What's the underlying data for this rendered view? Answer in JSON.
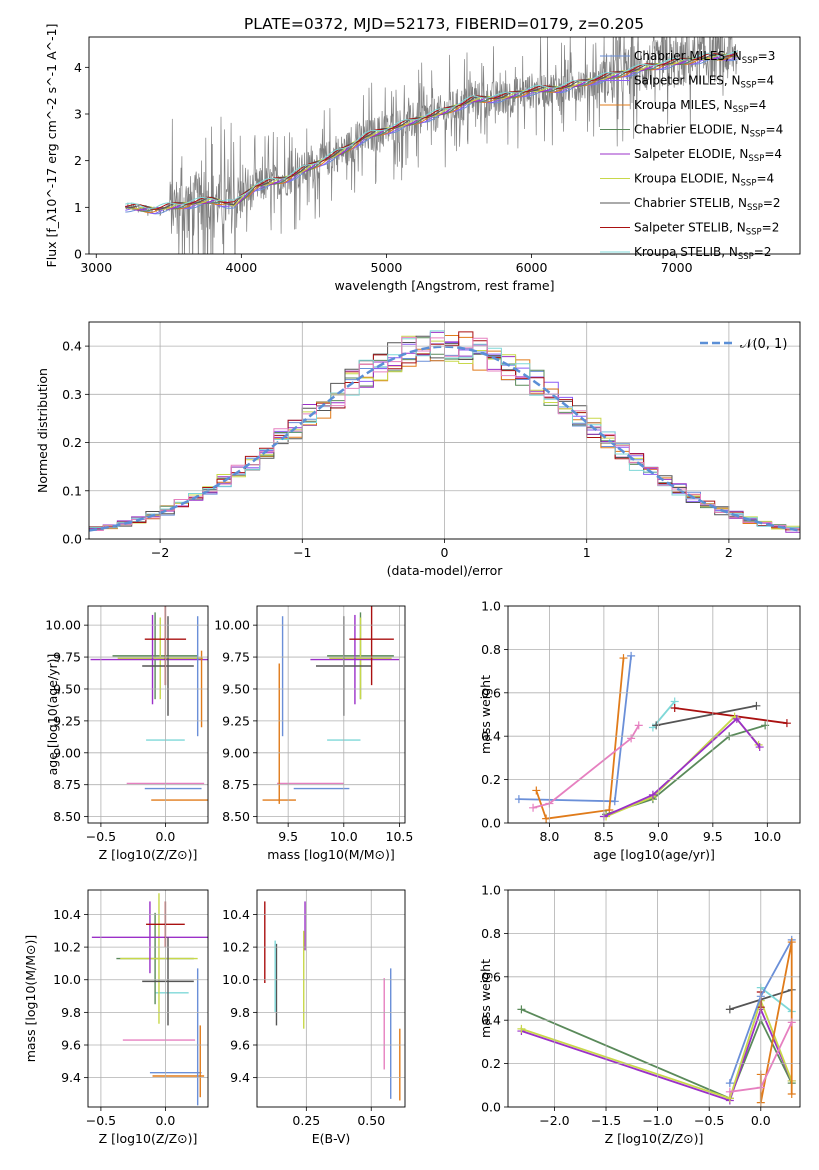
{
  "figure_title": "PLATE=0372, MJD=52173, FIBERID=0179, z=0.205",
  "colors": {
    "Chabrier MILES": "#6a8fd8",
    "Salpeter MILES": "#8b5cf6",
    "Kroupa MILES": "#e07b1a",
    "Chabrier ELODIE": "#5a8a5a",
    "Salpeter ELODIE": "#9b30c8",
    "Kroupa ELODIE": "#c8d84a",
    "Chabrier STELIB": "#555555",
    "Salpeter STELIB": "#aa1111",
    "Kroupa STELIB": "#7fd8d8",
    "extra_pink": "#e680c0",
    "observed": "#7f7f7f",
    "normal_curve": "#5b8fd6"
  },
  "chart_data": [
    {
      "id": "spectrum",
      "type": "line",
      "xlabel": "wavelength [Angstrom, rest frame]",
      "ylabel": "Flux [f_λ10^-17 erg cm^-2 s^-1 A^-1]",
      "xlim": [
        2950,
        7850
      ],
      "ylim": [
        0,
        4.65
      ],
      "xticks": [
        3000,
        4000,
        5000,
        6000,
        7000
      ],
      "yticks": [
        0,
        1,
        2,
        3,
        4
      ],
      "legend_position": "right",
      "legend": [
        {
          "model": "Chabrier MILES",
          "nssp": "3"
        },
        {
          "model": "Salpeter MILES",
          "nssp": "4"
        },
        {
          "model": "Kroupa MILES",
          "nssp": "4"
        },
        {
          "model": "Chabrier ELODIE",
          "nssp": "4"
        },
        {
          "model": "Salpeter ELODIE",
          "nssp": "4"
        },
        {
          "model": "Kroupa ELODIE",
          "nssp": "4"
        },
        {
          "model": "Chabrier STELIB",
          "nssp": "2"
        },
        {
          "model": "Salpeter STELIB",
          "nssp": "2"
        },
        {
          "model": "Kroupa STELIB",
          "nssp": "2"
        }
      ],
      "continuum": [
        [
          3200,
          1.0
        ],
        [
          3400,
          0.95
        ],
        [
          3600,
          1.05
        ],
        [
          3800,
          1.15
        ],
        [
          3950,
          1.05
        ],
        [
          4100,
          1.45
        ],
        [
          4300,
          1.6
        ],
        [
          4500,
          1.9
        ],
        [
          4700,
          2.2
        ],
        [
          4850,
          2.5
        ],
        [
          5000,
          2.65
        ],
        [
          5200,
          2.85
        ],
        [
          5400,
          3.05
        ],
        [
          5600,
          3.3
        ],
        [
          5800,
          3.35
        ],
        [
          6000,
          3.5
        ],
        [
          6200,
          3.55
        ],
        [
          6400,
          3.7
        ],
        [
          6600,
          3.85
        ],
        [
          6800,
          4.0
        ],
        [
          7000,
          4.1
        ],
        [
          7200,
          4.2
        ],
        [
          7400,
          4.25
        ]
      ]
    },
    {
      "id": "residuals",
      "type": "histogram",
      "xlabel": "(data-model)/error",
      "ylabel": "Normed distribution",
      "xlim": [
        -2.5,
        2.5
      ],
      "ylim": [
        0,
        0.45
      ],
      "xticks": [
        -2,
        -1,
        0,
        1,
        2
      ],
      "yticks": [
        0.0,
        0.1,
        0.2,
        0.3,
        0.4
      ],
      "legend_label": "𝒩(0, 1)",
      "normal": {
        "mu": 0,
        "sigma": 1
      }
    },
    {
      "id": "age_vs_Z",
      "type": "errorbar",
      "xlabel": "Z [log10(Z/Z⊙)]",
      "ylabel": "age  [log10(age/yr)]",
      "xlim": [
        -0.6,
        0.33
      ],
      "ylim": [
        8.45,
        10.15
      ],
      "xticks": [
        -0.5,
        0.0
      ],
      "yticks": [
        8.5,
        8.75,
        9.0,
        9.25,
        9.5,
        9.75,
        10.0
      ],
      "points": [
        {
          "c": "Chabrier MILES",
          "x": 0.06,
          "xerr": 0.22,
          "y": 8.72,
          "yerr": 0.0
        },
        {
          "c": "Kroupa MILES",
          "x": 0.14,
          "xerr": 0.25,
          "y": 8.63,
          "yerr": 0.0
        },
        {
          "c": "extra_pink",
          "x": 0.0,
          "xerr": 0.3,
          "y": 8.76,
          "yerr": 0.0
        },
        {
          "c": "Kroupa STELIB",
          "x": 0.0,
          "xerr": 0.15,
          "y": 9.1,
          "yerr": 0.0
        },
        {
          "c": "Chabrier ELODIE",
          "x": -0.08,
          "xerr": 0.33,
          "y": 9.76,
          "yerr": 0.34
        },
        {
          "c": "Kroupa ELODIE",
          "x": -0.04,
          "xerr": 0.33,
          "y": 9.74,
          "yerr": 0.32
        },
        {
          "c": "Salpeter ELODIE",
          "x": -0.1,
          "xerr": 0.48,
          "y": 9.73,
          "yerr": 0.35
        },
        {
          "c": "Chabrier STELIB",
          "x": 0.02,
          "xerr": 0.2,
          "y": 9.68,
          "yerr": 0.39
        },
        {
          "c": "Salpeter STELIB",
          "x": 0.0,
          "xerr": 0.16,
          "y": 9.89,
          "yerr": 0.36
        },
        {
          "c": "Chabrier MILES",
          "x": 0.25,
          "xerr": 0.0,
          "y": 9.6,
          "yerr": 0.47
        },
        {
          "c": "Kroupa MILES",
          "x": 0.28,
          "xerr": 0.0,
          "y": 9.5,
          "yerr": 0.3
        }
      ]
    },
    {
      "id": "age_vs_mass",
      "type": "errorbar",
      "xlabel": "mass [log10(M/M⊙)]",
      "xlim": [
        9.22,
        10.55
      ],
      "ylim": [
        8.45,
        10.15
      ],
      "xticks": [
        9.5,
        10.0,
        10.5
      ],
      "yticks": [
        8.5,
        8.75,
        9.0,
        9.25,
        9.5,
        9.75,
        10.0
      ],
      "points": [
        {
          "c": "Chabrier MILES",
          "x": 9.8,
          "xerr": 0.25,
          "y": 8.72,
          "yerr": 0.0
        },
        {
          "c": "Kroupa MILES",
          "x": 9.42,
          "xerr": 0.15,
          "y": 8.63,
          "yerr": 0.0
        },
        {
          "c": "extra_pink",
          "x": 9.7,
          "xerr": 0.3,
          "y": 8.76,
          "yerr": 0.0
        },
        {
          "c": "Kroupa STELIB",
          "x": 10.0,
          "xerr": 0.15,
          "y": 9.1,
          "yerr": 0.0
        },
        {
          "c": "Chabrier ELODIE",
          "x": 10.15,
          "xerr": 0.3,
          "y": 9.76,
          "yerr": 0.34
        },
        {
          "c": "Kroupa ELODIE",
          "x": 10.15,
          "xerr": 0.28,
          "y": 9.74,
          "yerr": 0.32
        },
        {
          "c": "Salpeter ELODIE",
          "x": 10.1,
          "xerr": 0.4,
          "y": 9.73,
          "yerr": 0.35
        },
        {
          "c": "Chabrier STELIB",
          "x": 10.0,
          "xerr": 0.25,
          "y": 9.68,
          "yerr": 0.39
        },
        {
          "c": "Salpeter STELIB",
          "x": 10.25,
          "xerr": 0.2,
          "y": 9.89,
          "yerr": 0.36
        },
        {
          "c": "Chabrier MILES",
          "x": 9.45,
          "xerr": 0.0,
          "y": 9.6,
          "yerr": 0.47
        },
        {
          "c": "Kroupa MILES",
          "x": 9.42,
          "xerr": 0.0,
          "y": 9.15,
          "yerr": 0.55
        }
      ]
    },
    {
      "id": "weight_vs_age",
      "type": "line",
      "xlabel": "age  [log10(age/yr)]",
      "ylabel": "mass weight",
      "xlim": [
        7.62,
        10.3
      ],
      "ylim": [
        0,
        1.0
      ],
      "xticks": [
        8.0,
        8.5,
        9.0,
        9.5,
        10.0
      ],
      "yticks": [
        0.0,
        0.2,
        0.4,
        0.6,
        0.8,
        1.0
      ],
      "series": [
        {
          "c": "Chabrier MILES",
          "pts": [
            [
              7.72,
              0.11
            ],
            [
              8.6,
              0.1
            ],
            [
              8.75,
              0.77
            ]
          ]
        },
        {
          "c": "Kroupa MILES",
          "pts": [
            [
              7.88,
              0.15
            ],
            [
              7.97,
              0.02
            ],
            [
              8.55,
              0.06
            ],
            [
              8.68,
              0.76
            ]
          ]
        },
        {
          "c": "extra_pink",
          "pts": [
            [
              7.85,
              0.07
            ],
            [
              8.0,
              0.09
            ],
            [
              8.75,
              0.39
            ],
            [
              8.82,
              0.45
            ]
          ]
        },
        {
          "c": "Kroupa STELIB",
          "pts": [
            [
              8.95,
              0.44
            ],
            [
              9.15,
              0.56
            ]
          ]
        },
        {
          "c": "Chabrier STELIB",
          "pts": [
            [
              8.98,
              0.45
            ],
            [
              9.9,
              0.54
            ]
          ]
        },
        {
          "c": "Salpeter STELIB",
          "pts": [
            [
              9.15,
              0.53
            ],
            [
              10.18,
              0.46
            ]
          ]
        },
        {
          "c": "Chabrier ELODIE",
          "pts": [
            [
              8.52,
              0.04
            ],
            [
              8.95,
              0.11
            ],
            [
              9.65,
              0.4
            ],
            [
              9.98,
              0.45
            ]
          ]
        },
        {
          "c": "Kroupa ELODIE",
          "pts": [
            [
              8.52,
              0.03
            ],
            [
              8.95,
              0.12
            ],
            [
              9.7,
              0.49
            ],
            [
              9.92,
              0.36
            ]
          ]
        },
        {
          "c": "Salpeter ELODIE",
          "pts": [
            [
              8.5,
              0.03
            ],
            [
              8.95,
              0.13
            ],
            [
              9.72,
              0.48
            ],
            [
              9.93,
              0.35
            ]
          ]
        }
      ]
    },
    {
      "id": "mass_vs_Z",
      "type": "errorbar",
      "xlabel": "Z [log10(Z/Z⊙)]",
      "ylabel": "mass [log10(M/M⊙)]",
      "xlim": [
        -0.6,
        0.33
      ],
      "ylim": [
        9.22,
        10.55
      ],
      "xticks": [
        -0.5,
        0.0
      ],
      "yticks": [
        9.4,
        9.6,
        9.8,
        10.0,
        10.2,
        10.4
      ],
      "points": [
        {
          "c": "Chabrier MILES",
          "x": 0.08,
          "xerr": 0.2,
          "y": 9.43,
          "yerr": 0.0
        },
        {
          "c": "Kroupa MILES",
          "x": 0.1,
          "xerr": 0.2,
          "y": 9.41,
          "yerr": 0.0
        },
        {
          "c": "extra_pink",
          "x": -0.05,
          "xerr": 0.28,
          "y": 9.63,
          "yerr": 0.0
        },
        {
          "c": "Kroupa STELIB",
          "x": 0.05,
          "xerr": 0.13,
          "y": 9.92,
          "yerr": 0.0
        },
        {
          "c": "Chabrier ELODIE",
          "x": -0.08,
          "xerr": 0.3,
          "y": 10.13,
          "yerr": 0.28
        },
        {
          "c": "Kroupa ELODIE",
          "x": -0.05,
          "xerr": 0.3,
          "y": 10.13,
          "yerr": 0.4
        },
        {
          "c": "Salpeter ELODIE",
          "x": -0.12,
          "xerr": 0.45,
          "y": 10.26,
          "yerr": 0.22
        },
        {
          "c": "Chabrier STELIB",
          "x": 0.02,
          "xerr": 0.2,
          "y": 9.99,
          "yerr": 0.27
        },
        {
          "c": "Salpeter STELIB",
          "x": 0.0,
          "xerr": 0.15,
          "y": 10.34,
          "yerr": 0.14
        },
        {
          "c": "Chabrier MILES",
          "x": 0.25,
          "xerr": 0.0,
          "y": 9.65,
          "yerr": 0.42
        },
        {
          "c": "Kroupa MILES",
          "x": 0.27,
          "xerr": 0.0,
          "y": 9.5,
          "yerr": 0.22
        }
      ]
    },
    {
      "id": "mass_vs_EBV",
      "type": "errorbar",
      "xlabel": "E(B-V)",
      "xlim": [
        0.06,
        0.63
      ],
      "ylim": [
        9.22,
        10.55
      ],
      "xticks": [
        0.25,
        0.5
      ],
      "yticks": [
        9.4,
        9.6,
        9.8,
        10.0,
        10.2,
        10.4
      ],
      "points": [
        {
          "c": "Salpeter STELIB",
          "x": 0.09,
          "y": 10.23,
          "yerr": 0.25
        },
        {
          "c": "Chabrier STELIB",
          "x": 0.135,
          "y": 9.97,
          "yerr": 0.25
        },
        {
          "c": "Kroupa STELIB",
          "x": 0.13,
          "y": 10.02,
          "yerr": 0.22
        },
        {
          "c": "Salpeter ELODIE",
          "x": 0.245,
          "y": 10.33,
          "yerr": 0.15
        },
        {
          "c": "Kroupa ELODIE",
          "x": 0.24,
          "y": 10.0,
          "yerr": 0.3
        },
        {
          "c": "extra_pink",
          "x": 0.55,
          "y": 9.73,
          "yerr": 0.28
        },
        {
          "c": "Chabrier MILES",
          "x": 0.575,
          "y": 9.67,
          "yerr": 0.4
        },
        {
          "c": "Kroupa MILES",
          "x": 0.61,
          "y": 9.48,
          "yerr": 0.22
        }
      ]
    },
    {
      "id": "weight_vs_Z",
      "type": "line",
      "xlabel": "Z [log10(Z/Z⊙)]",
      "ylabel": "mass weight",
      "xlim": [
        -2.45,
        0.38
      ],
      "ylim": [
        0,
        1.0
      ],
      "xticks": [
        -2.0,
        -1.5,
        -1.0,
        -0.5,
        0.0
      ],
      "yticks": [
        0.0,
        0.2,
        0.4,
        0.6,
        0.8,
        1.0
      ],
      "series": [
        {
          "c": "Chabrier ELODIE",
          "pts": [
            [
              -2.32,
              0.45
            ],
            [
              -0.3,
              0.04
            ],
            [
              0.0,
              0.4
            ],
            [
              0.3,
              0.11
            ]
          ]
        },
        {
          "c": "Salpeter ELODIE",
          "pts": [
            [
              -2.32,
              0.35
            ],
            [
              -0.3,
              0.03
            ],
            [
              0.0,
              0.45
            ],
            [
              0.3,
              0.12
            ]
          ]
        },
        {
          "c": "Kroupa ELODIE",
          "pts": [
            [
              -2.32,
              0.36
            ],
            [
              -0.3,
              0.04
            ],
            [
              0.0,
              0.49
            ],
            [
              0.3,
              0.12
            ]
          ]
        },
        {
          "c": "Chabrier STELIB",
          "pts": [
            [
              -0.3,
              0.45
            ],
            [
              0.3,
              0.54
            ]
          ]
        },
        {
          "c": "Salpeter STELIB",
          "pts": [
            [
              0.0,
              0.53
            ],
            [
              0.0,
              0.46
            ]
          ]
        },
        {
          "c": "Kroupa STELIB",
          "pts": [
            [
              0.0,
              0.55
            ],
            [
              0.3,
              0.44
            ]
          ]
        },
        {
          "c": "Chabrier MILES",
          "pts": [
            [
              -0.3,
              0.11
            ],
            [
              0.0,
              0.51
            ],
            [
              0.3,
              0.77
            ]
          ]
        },
        {
          "c": "Kroupa MILES",
          "pts": [
            [
              0.0,
              0.15
            ],
            [
              0.0,
              0.02
            ],
            [
              0.3,
              0.76
            ],
            [
              0.3,
              0.06
            ]
          ]
        },
        {
          "c": "extra_pink",
          "pts": [
            [
              -0.3,
              0.07
            ],
            [
              0.0,
              0.09
            ],
            [
              0.3,
              0.39
            ]
          ]
        }
      ]
    }
  ]
}
